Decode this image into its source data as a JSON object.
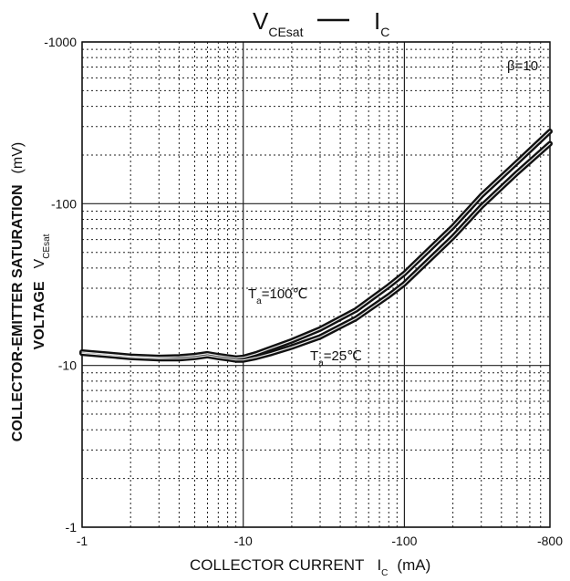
{
  "chart_data": {
    "type": "line",
    "title": {
      "main": "V",
      "main_sub": "CEsat",
      "sep": "—",
      "second": "I",
      "second_sub": "C"
    },
    "xlabel": {
      "text": "COLLECTOR CURRENT",
      "sym": "I",
      "sym_sub": "C",
      "unit": "(mA)"
    },
    "ylabel": {
      "line1": "COLLECTOR-EMITTER SATURATION",
      "line1_unit": "(mV)",
      "line2": "VOLTAGE",
      "sym": "V",
      "sym_sub": "CEsat"
    },
    "x_scale": "log",
    "y_scale": "log",
    "xlim": [
      -1,
      -800
    ],
    "ylim": [
      -1,
      -1000
    ],
    "x_ticks": [
      "-1",
      "-10",
      "-100",
      "-800"
    ],
    "y_ticks": [
      "-1",
      "-10",
      "-100",
      "-1000"
    ],
    "grid": true,
    "annotation": "β=10",
    "series": [
      {
        "label_T": "T",
        "label_sub": "a",
        "label_rest": "=100℃",
        "x": [
          -1,
          -1.5,
          -2,
          -3,
          -4,
          -5,
          -6,
          -7,
          -8,
          -9,
          -10,
          -12,
          -15,
          -20,
          -30,
          -50,
          -80,
          -100,
          -200,
          -300,
          -500,
          -800
        ],
        "y": [
          -12.1,
          -11.7,
          -11.4,
          -11.2,
          -11.3,
          -11.5,
          -11.8,
          -11.5,
          -11.3,
          -11.1,
          -11.2,
          -11.8,
          -12.8,
          -14.2,
          -16.8,
          -22,
          -31,
          -37,
          -72,
          -112,
          -180,
          -280
        ]
      },
      {
        "label_T": "T",
        "label_sub": "a",
        "label_rest": "=25℃",
        "x": [
          -1,
          -1.5,
          -2,
          -3,
          -4,
          -5,
          -6,
          -7,
          -8,
          -9,
          -10,
          -12,
          -15,
          -20,
          -30,
          -50,
          -80,
          -100,
          -200,
          -300,
          -500,
          -800
        ],
        "y": [
          -11.9,
          -11.5,
          -11.2,
          -11.0,
          -11.0,
          -11.2,
          -11.5,
          -11.2,
          -11.0,
          -10.8,
          -10.8,
          -11.2,
          -11.9,
          -13.0,
          -15.0,
          -19.5,
          -27,
          -32,
          -62,
          -96,
          -155,
          -235
        ]
      }
    ]
  }
}
